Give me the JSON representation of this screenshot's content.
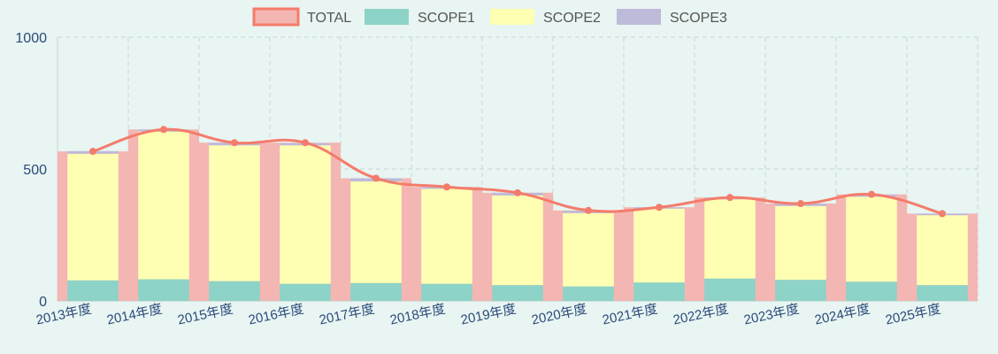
{
  "chart_data": {
    "type": "bar",
    "categories": [
      "2013年度",
      "2014年度",
      "2015年度",
      "2016年度",
      "2017年度",
      "2018年度",
      "2019年度",
      "2020年度",
      "2021年度",
      "2022年度",
      "2023年度",
      "2024年度",
      "2025年度"
    ],
    "series": [
      {
        "name": "TOTAL",
        "kind": "bar+line",
        "values": [
          567,
          650,
          600,
          600,
          465,
          432,
          410,
          343,
          355,
          392,
          369,
          404,
          331
        ]
      },
      {
        "name": "SCOPE1",
        "kind": "stacked-bar",
        "values": [
          78,
          82,
          75,
          65,
          68,
          65,
          60,
          55,
          70,
          85,
          80,
          73,
          60
        ]
      },
      {
        "name": "SCOPE2",
        "kind": "stacked-bar",
        "values": [
          480,
          560,
          515,
          525,
          385,
          360,
          340,
          278,
          280,
          300,
          280,
          322,
          265
        ]
      },
      {
        "name": "SCOPE3",
        "kind": "stacked-bar",
        "values": [
          10,
          8,
          10,
          8,
          12,
          7,
          10,
          8,
          5,
          7,
          9,
          8,
          6
        ]
      }
    ],
    "ylim": [
      0,
      1000
    ],
    "yticks": [
      0,
      500,
      1000
    ],
    "grid": true,
    "legend_position": "top-center",
    "colors": {
      "TOTAL_fill": "#f4b6b3",
      "TOTAL_line": "#f47c6b",
      "SCOPE1": "#8dd3c7",
      "SCOPE2": "#ffffb3",
      "SCOPE3": "#bebada",
      "grid": "#c9d8d4",
      "axis_text": "#2b4a7a",
      "background": "#e8f5f2"
    }
  }
}
